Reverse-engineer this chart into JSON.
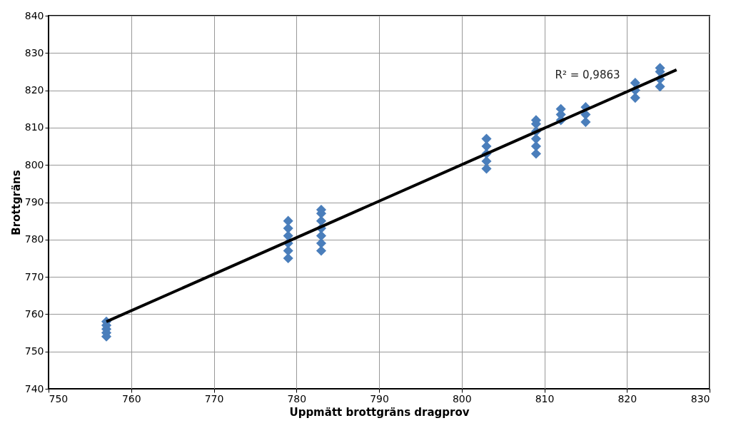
{
  "chart_data": {
    "type": "scatter",
    "xlabel": "Uppmätt brottgräns dragprov",
    "ylabel": "Brottgräns",
    "xlim": [
      750,
      830
    ],
    "xticks": [
      750,
      760,
      770,
      780,
      790,
      800,
      810,
      820,
      830
    ],
    "ylim": [
      740,
      840
    ],
    "yticks": [
      740,
      750,
      760,
      770,
      780,
      790,
      800,
      810,
      820,
      830,
      840
    ],
    "grid": true,
    "annotations": [
      "R² = 0,9863"
    ],
    "series": [
      {
        "marker": "diamond",
        "color": "#4a7ebb",
        "x": [
          757,
          757,
          757,
          757,
          757,
          779,
          779,
          779,
          779,
          779,
          779,
          783,
          783,
          783,
          783,
          783,
          783,
          783,
          803,
          803,
          803,
          803,
          803,
          809,
          809,
          809,
          809,
          809,
          809,
          812,
          812,
          812,
          815,
          815,
          815,
          821,
          821,
          821,
          824,
          824,
          824,
          824
        ],
        "values": [
          754,
          755,
          756,
          757,
          758,
          775,
          777,
          779,
          781,
          783,
          785,
          777,
          779,
          781,
          783,
          785,
          787,
          788,
          799,
          801,
          803,
          805,
          807,
          803,
          805,
          807,
          809,
          811,
          812,
          812,
          813.5,
          815,
          811.5,
          813.5,
          815.5,
          818,
          820,
          822,
          821,
          823,
          825,
          826
        ]
      },
      {
        "type": "line",
        "color": "#000000",
        "x": [
          757,
          826
        ],
        "values": [
          758,
          825.5
        ]
      }
    ]
  }
}
